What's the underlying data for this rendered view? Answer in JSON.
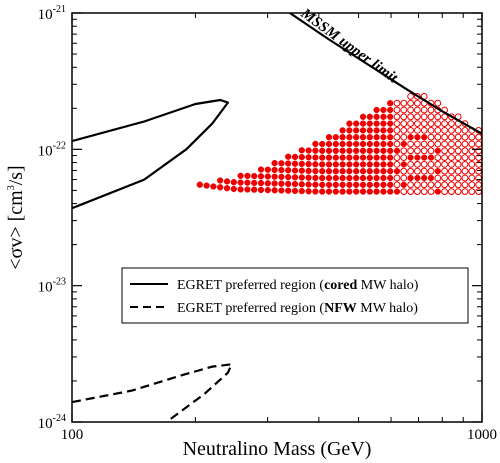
{
  "chart_data": {
    "type": "scatter",
    "xlabel": "Neutralino Mass (GeV)",
    "ylabel_prefix": "<σv> [cm",
    "ylabel_exp": "3",
    "ylabel_suffix": "/s]",
    "x_scale": "log",
    "y_scale": "log",
    "xlim": [
      100,
      1000
    ],
    "ylim": [
      1e-24,
      1e-21
    ],
    "x_ticks": [
      {
        "value": 100,
        "label": "100"
      },
      {
        "value": 1000,
        "label": "1000"
      }
    ],
    "y_ticks": [
      {
        "value": 1e-24,
        "base": "10",
        "exp": "-24"
      },
      {
        "value": 1e-23,
        "base": "10",
        "exp": "-23"
      },
      {
        "value": 1e-22,
        "base": "10",
        "exp": "-22"
      },
      {
        "value": 1e-21,
        "base": "10",
        "exp": "-21"
      }
    ],
    "annotation": "MSSM upper limit",
    "legend_placement": "center-right",
    "legend": [
      {
        "style": "solid",
        "pre": "EGRET preferred region (",
        "bold": "cored",
        "post": " MW halo)"
      },
      {
        "style": "dashed",
        "pre": "EGRET preferred region (",
        "bold": "NFW",
        "post": " MW halo)"
      }
    ],
    "series": [
      {
        "style": "solid",
        "points": [
          [
            100,
            1.15e-22
          ],
          [
            150,
            1.6e-22
          ],
          [
            200,
            2.15e-22
          ],
          [
            230,
            2.3e-22
          ],
          [
            240,
            2.2e-22
          ],
          [
            220,
            1.55e-22
          ],
          [
            190,
            1e-22
          ],
          [
            150,
            6e-23
          ],
          [
            100,
            3.7e-23
          ]
        ]
      },
      {
        "style": "dashed",
        "points": [
          [
            100,
            1.4e-24
          ],
          [
            140,
            1.7e-24
          ],
          [
            185,
            2.2e-24
          ],
          [
            220,
            2.55e-24
          ],
          [
            245,
            2.65e-24
          ],
          [
            240,
            2.3e-24
          ],
          [
            210,
            1.6e-24
          ],
          [
            170,
            1e-24
          ]
        ]
      },
      {
        "style": "solid",
        "points": [
          [
            340,
            1e-21
          ],
          [
            420,
            6.5e-22
          ],
          [
            520,
            4.3e-22
          ],
          [
            650,
            2.8e-22
          ],
          [
            800,
            1.9e-22
          ],
          [
            1000,
            1.3e-22
          ]
        ]
      }
    ],
    "scatter_region": {
      "color": "#ee0000",
      "filled_xrange": [
        205,
        600
      ],
      "open_xrange": [
        600,
        1000
      ],
      "y_min": 5e-23,
      "y_max_at_x": [
        [
          205,
          5.5e-23
        ],
        [
          300,
          7.5e-23
        ],
        [
          400,
          1.15e-22
        ],
        [
          500,
          1.7e-22
        ],
        [
          600,
          2.3e-22
        ],
        [
          700,
          2.6e-22
        ],
        [
          800,
          2.1e-22
        ],
        [
          1000,
          1.35e-22
        ]
      ],
      "y_min_at_x": [
        [
          205,
          5.5e-23
        ],
        [
          250,
          5.1e-23
        ],
        [
          400,
          4.9e-23
        ],
        [
          1000,
          4.9e-23
        ]
      ]
    }
  }
}
